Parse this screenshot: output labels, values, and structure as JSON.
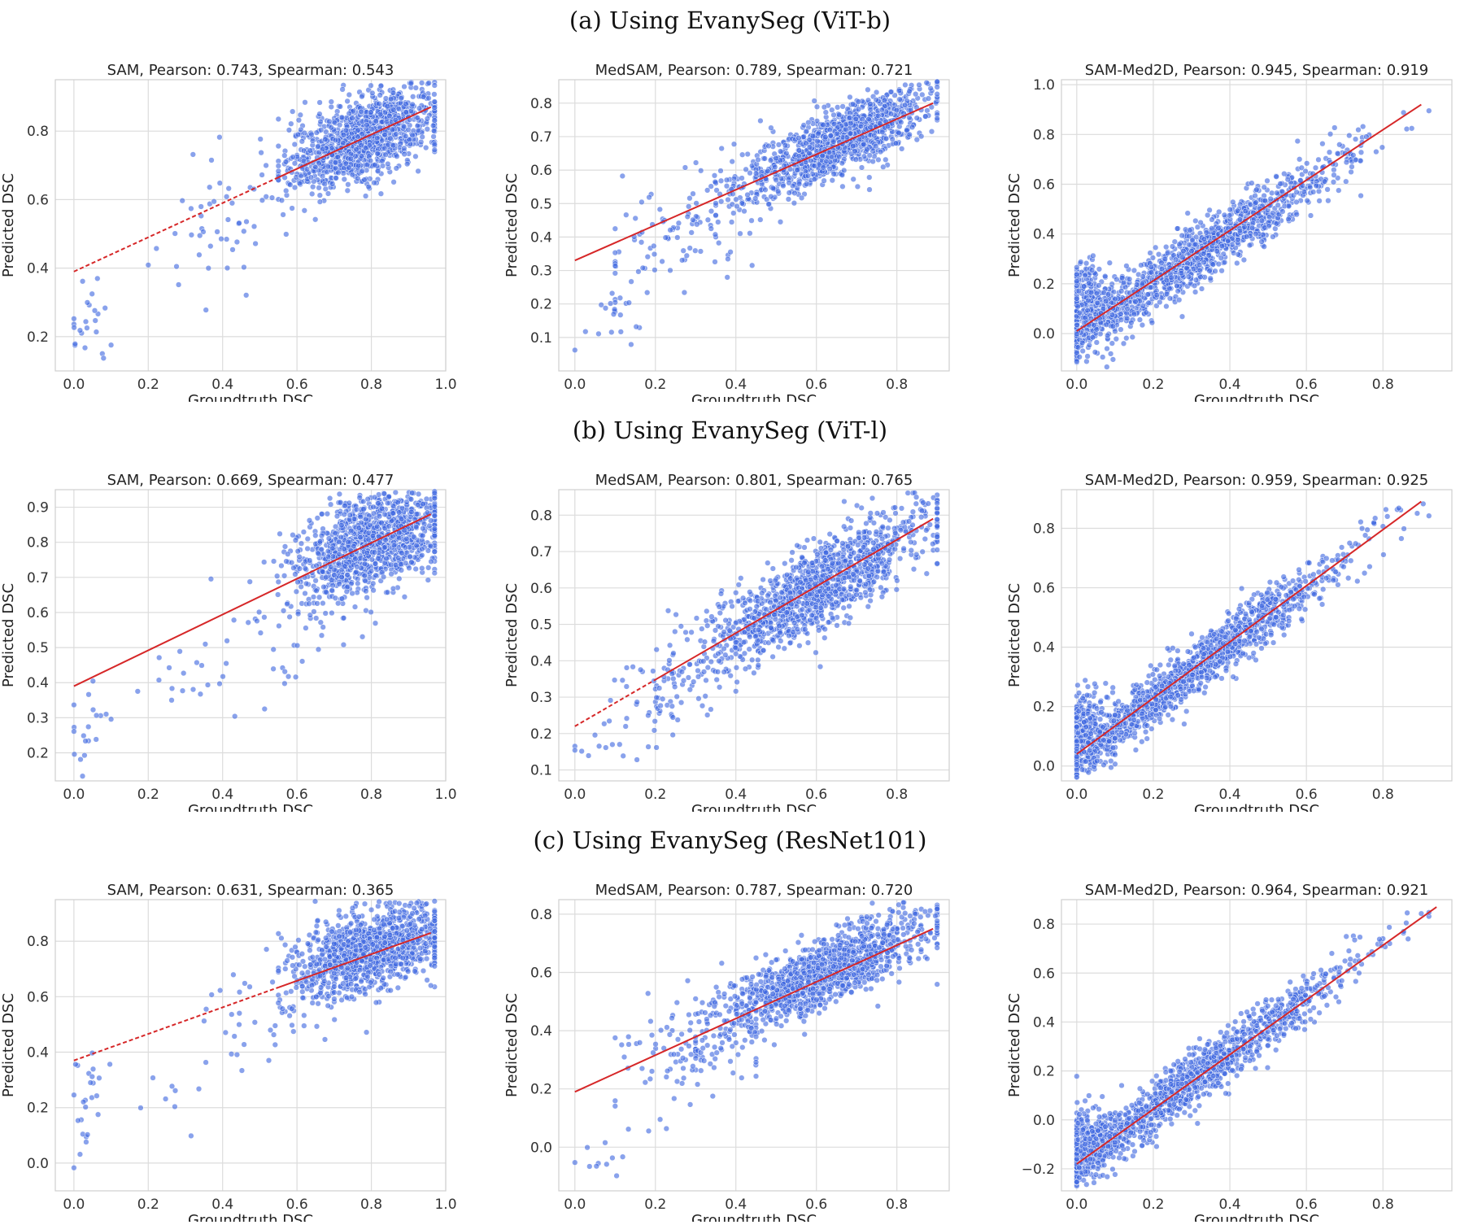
{
  "row_titles": [
    "(a) Using EvanySeg (ViT-b)",
    "(b) Using EvanySeg (ViT-l)",
    "(c) Using EvanySeg (ResNet101)"
  ],
  "style": {
    "point_color": "#4169e1",
    "line_color": "#d62728",
    "grid_color": "#dcdcdc"
  },
  "chart_data": [
    {
      "type": "scatter",
      "row": 0,
      "col": 0,
      "title": "SAM, Pearson: 0.743, Spearman: 0.543",
      "xlabel": "Groundtruth DSC",
      "ylabel": "Predicted DSC",
      "xlim": [
        -0.05,
        1.0
      ],
      "ylim": [
        0.1,
        0.95
      ],
      "xticks": [
        0.0,
        0.2,
        0.4,
        0.6,
        0.8,
        1.0
      ],
      "yticks": [
        0.2,
        0.4,
        0.6,
        0.8
      ],
      "fit": {
        "x": [
          0.0,
          0.96
        ],
        "y": [
          0.39,
          0.87
        ],
        "dashed_until": 0.55
      },
      "clusters": [
        {
          "cx": 0.78,
          "cy": 0.78,
          "sx": 0.1,
          "sy": 0.06,
          "slope": 0.45,
          "xmin": 0.55,
          "xmax": 0.97,
          "n": 1100
        },
        {
          "cx": 0.45,
          "cy": 0.58,
          "sx": 0.12,
          "sy": 0.12,
          "slope": 0.6,
          "xmin": 0.2,
          "xmax": 0.62,
          "n": 60
        },
        {
          "cx": 0.04,
          "cy": 0.26,
          "sx": 0.03,
          "sy": 0.08,
          "slope": 0,
          "xmin": 0.0,
          "xmax": 0.1,
          "n": 25
        }
      ],
      "grid": true
    },
    {
      "type": "scatter",
      "row": 0,
      "col": 1,
      "title": "MedSAM, Pearson: 0.789, Spearman: 0.721",
      "xlabel": "Groundtruth DSC",
      "ylabel": "Predicted DSC",
      "xlim": [
        -0.04,
        0.93
      ],
      "ylim": [
        0.0,
        0.87
      ],
      "xticks": [
        0.0,
        0.2,
        0.4,
        0.6,
        0.8
      ],
      "yticks": [
        0.1,
        0.2,
        0.3,
        0.4,
        0.5,
        0.6,
        0.7,
        0.8
      ],
      "fit": {
        "x": [
          0.0,
          0.89
        ],
        "y": [
          0.33,
          0.8
        ],
        "dashed_until": 0
      },
      "clusters": [
        {
          "cx": 0.65,
          "cy": 0.68,
          "sx": 0.12,
          "sy": 0.05,
          "slope": 0.55,
          "xmin": 0.35,
          "xmax": 0.9,
          "n": 1100
        },
        {
          "cx": 0.3,
          "cy": 0.45,
          "sx": 0.12,
          "sy": 0.09,
          "slope": 0.6,
          "xmin": 0.1,
          "xmax": 0.5,
          "n": 120
        },
        {
          "cx": 0.08,
          "cy": 0.14,
          "sx": 0.06,
          "sy": 0.06,
          "slope": 0,
          "xmin": 0.0,
          "xmax": 0.18,
          "n": 20
        }
      ],
      "grid": true
    },
    {
      "type": "scatter",
      "row": 0,
      "col": 2,
      "title": "SAM-Med2D, Pearson: 0.945, Spearman: 0.919",
      "xlabel": "Groundtruth DSC",
      "ylabel": "Predicted DSC",
      "xlim": [
        -0.04,
        0.98
      ],
      "ylim": [
        -0.15,
        1.02
      ],
      "xticks": [
        0.0,
        0.2,
        0.4,
        0.6,
        0.8
      ],
      "yticks": [
        0.0,
        0.2,
        0.4,
        0.6,
        0.8,
        1.0
      ],
      "fit": {
        "x": [
          0.0,
          0.9
        ],
        "y": [
          0.01,
          0.92
        ],
        "dashed_until": 0
      },
      "clusters": [
        {
          "cx": 0.3,
          "cy": 0.3,
          "sx": 0.2,
          "sy": 0.06,
          "slope": 1.0,
          "xmin": 0.0,
          "xmax": 0.92,
          "n": 1300
        },
        {
          "cx": 0.03,
          "cy": 0.1,
          "sx": 0.03,
          "sy": 0.1,
          "slope": 0,
          "xmin": 0.0,
          "xmax": 0.1,
          "n": 250
        }
      ],
      "grid": true
    },
    {
      "type": "scatter",
      "row": 1,
      "col": 0,
      "title": "SAM, Pearson: 0.669, Spearman: 0.477",
      "xlabel": "Groundtruth DSC",
      "ylabel": "Predicted DSC",
      "xlim": [
        -0.05,
        1.0
      ],
      "ylim": [
        0.12,
        0.95
      ],
      "xticks": [
        0.0,
        0.2,
        0.4,
        0.6,
        0.8,
        1.0
      ],
      "yticks": [
        0.2,
        0.3,
        0.4,
        0.5,
        0.6,
        0.7,
        0.8,
        0.9
      ],
      "fit": {
        "x": [
          0.0,
          0.96
        ],
        "y": [
          0.39,
          0.88
        ],
        "dashed_until": 0
      },
      "clusters": [
        {
          "cx": 0.8,
          "cy": 0.8,
          "sx": 0.1,
          "sy": 0.07,
          "slope": 0.35,
          "xmin": 0.55,
          "xmax": 0.97,
          "n": 1100
        },
        {
          "cx": 0.62,
          "cy": 0.6,
          "sx": 0.12,
          "sy": 0.1,
          "slope": 0.4,
          "xmin": 0.3,
          "xmax": 0.97,
          "n": 80
        },
        {
          "cx": 0.04,
          "cy": 0.28,
          "sx": 0.03,
          "sy": 0.08,
          "slope": 0,
          "xmin": 0.0,
          "xmax": 0.1,
          "n": 20
        },
        {
          "cx": 0.3,
          "cy": 0.42,
          "sx": 0.07,
          "sy": 0.05,
          "slope": 0.5,
          "xmin": 0.15,
          "xmax": 0.45,
          "n": 15
        }
      ],
      "grid": true
    },
    {
      "type": "scatter",
      "row": 1,
      "col": 1,
      "title": "MedSAM, Pearson: 0.801, Spearman: 0.765",
      "xlabel": "Groundtruth DSC",
      "ylabel": "Predicted DSC",
      "xlim": [
        -0.04,
        0.93
      ],
      "ylim": [
        0.07,
        0.87
      ],
      "xticks": [
        0.0,
        0.2,
        0.4,
        0.6,
        0.8
      ],
      "yticks": [
        0.1,
        0.2,
        0.3,
        0.4,
        0.5,
        0.6,
        0.7,
        0.8
      ],
      "fit": {
        "x": [
          0.0,
          0.89
        ],
        "y": [
          0.22,
          0.79
        ],
        "dashed_until": 0.2
      },
      "clusters": [
        {
          "cx": 0.6,
          "cy": 0.6,
          "sx": 0.14,
          "sy": 0.06,
          "slope": 0.65,
          "xmin": 0.2,
          "xmax": 0.9,
          "n": 1250
        },
        {
          "cx": 0.25,
          "cy": 0.33,
          "sx": 0.1,
          "sy": 0.07,
          "slope": 0.6,
          "xmin": 0.05,
          "xmax": 0.4,
          "n": 90
        },
        {
          "cx": 0.06,
          "cy": 0.14,
          "sx": 0.04,
          "sy": 0.02,
          "slope": 0,
          "xmin": 0.0,
          "xmax": 0.12,
          "n": 8
        }
      ],
      "grid": true
    },
    {
      "type": "scatter",
      "row": 1,
      "col": 2,
      "title": "SAM-Med2D, Pearson: 0.959, Spearman: 0.925",
      "xlabel": "Groundtruth DSC",
      "ylabel": "Predicted DSC",
      "xlim": [
        -0.04,
        0.98
      ],
      "ylim": [
        -0.05,
        0.93
      ],
      "xticks": [
        0.0,
        0.2,
        0.4,
        0.6,
        0.8
      ],
      "yticks": [
        0.0,
        0.2,
        0.4,
        0.6,
        0.8
      ],
      "fit": {
        "x": [
          0.0,
          0.9
        ],
        "y": [
          0.04,
          0.89
        ],
        "dashed_until": 0
      },
      "clusters": [
        {
          "cx": 0.3,
          "cy": 0.32,
          "sx": 0.2,
          "sy": 0.045,
          "slope": 0.95,
          "xmin": 0.0,
          "xmax": 0.92,
          "n": 1300
        },
        {
          "cx": 0.03,
          "cy": 0.12,
          "sx": 0.03,
          "sy": 0.07,
          "slope": 0,
          "xmin": 0.0,
          "xmax": 0.1,
          "n": 250
        }
      ],
      "grid": true
    },
    {
      "type": "scatter",
      "row": 2,
      "col": 0,
      "title": "SAM, Pearson: 0.631, Spearman: 0.365",
      "xlabel": "Groundtruth DSC",
      "ylabel": "Predicted DSC",
      "xlim": [
        -0.05,
        1.0
      ],
      "ylim": [
        -0.1,
        0.95
      ],
      "xticks": [
        0.0,
        0.2,
        0.4,
        0.6,
        0.8,
        1.0
      ],
      "yticks": [
        0.0,
        0.2,
        0.4,
        0.6,
        0.8
      ],
      "fit": {
        "x": [
          0.0,
          0.96
        ],
        "y": [
          0.37,
          0.83
        ],
        "dashed_until": 0.55
      },
      "clusters": [
        {
          "cx": 0.8,
          "cy": 0.77,
          "sx": 0.1,
          "sy": 0.07,
          "slope": 0.35,
          "xmin": 0.55,
          "xmax": 0.97,
          "n": 1100
        },
        {
          "cx": 0.55,
          "cy": 0.58,
          "sx": 0.1,
          "sy": 0.1,
          "slope": 0.5,
          "xmin": 0.35,
          "xmax": 0.7,
          "n": 60
        },
        {
          "cx": 0.04,
          "cy": 0.2,
          "sx": 0.03,
          "sy": 0.12,
          "slope": 0,
          "xmin": 0.0,
          "xmax": 0.1,
          "n": 25
        },
        {
          "cx": 0.25,
          "cy": 0.22,
          "sx": 0.06,
          "sy": 0.05,
          "slope": 0,
          "xmin": 0.15,
          "xmax": 0.35,
          "n": 8
        }
      ],
      "grid": true
    },
    {
      "type": "scatter",
      "row": 2,
      "col": 1,
      "title": "MedSAM, Pearson: 0.787, Spearman: 0.720",
      "xlabel": "Groundtruth DSC",
      "ylabel": "Predicted DSC",
      "xlim": [
        -0.04,
        0.93
      ],
      "ylim": [
        -0.15,
        0.85
      ],
      "xticks": [
        0.0,
        0.2,
        0.4,
        0.6,
        0.8
      ],
      "yticks": [
        0.0,
        0.2,
        0.4,
        0.6,
        0.8
      ],
      "fit": {
        "x": [
          0.0,
          0.89
        ],
        "y": [
          0.19,
          0.75
        ],
        "dashed_until": 0
      },
      "clusters": [
        {
          "cx": 0.62,
          "cy": 0.6,
          "sx": 0.13,
          "sy": 0.06,
          "slope": 0.6,
          "xmin": 0.3,
          "xmax": 0.9,
          "n": 1200
        },
        {
          "cx": 0.3,
          "cy": 0.35,
          "sx": 0.1,
          "sy": 0.1,
          "slope": 0.6,
          "xmin": 0.1,
          "xmax": 0.45,
          "n": 120
        },
        {
          "cx": 0.07,
          "cy": -0.04,
          "sx": 0.04,
          "sy": 0.04,
          "slope": 0,
          "xmin": 0.0,
          "xmax": 0.12,
          "n": 10
        }
      ],
      "grid": true
    },
    {
      "type": "scatter",
      "row": 2,
      "col": 2,
      "title": "SAM-Med2D, Pearson: 0.964, Spearman: 0.921",
      "xlabel": "Groundtruth DSC",
      "ylabel": "Predicted DSC",
      "xlim": [
        -0.04,
        0.98
      ],
      "ylim": [
        -0.29,
        0.9
      ],
      "xticks": [
        0.0,
        0.2,
        0.4,
        0.6,
        0.8
      ],
      "yticks": [
        -0.2,
        0.0,
        0.2,
        0.4,
        0.6,
        0.8
      ],
      "fit": {
        "x": [
          0.0,
          0.94
        ],
        "y": [
          -0.18,
          0.87
        ],
        "dashed_until": 0
      },
      "clusters": [
        {
          "cx": 0.3,
          "cy": 0.16,
          "sx": 0.2,
          "sy": 0.055,
          "slope": 1.12,
          "xmin": 0.0,
          "xmax": 0.92,
          "n": 1300
        },
        {
          "cx": 0.03,
          "cy": -0.1,
          "sx": 0.03,
          "sy": 0.08,
          "slope": 0,
          "xmin": 0.0,
          "xmax": 0.1,
          "n": 250
        }
      ],
      "grid": true
    }
  ]
}
